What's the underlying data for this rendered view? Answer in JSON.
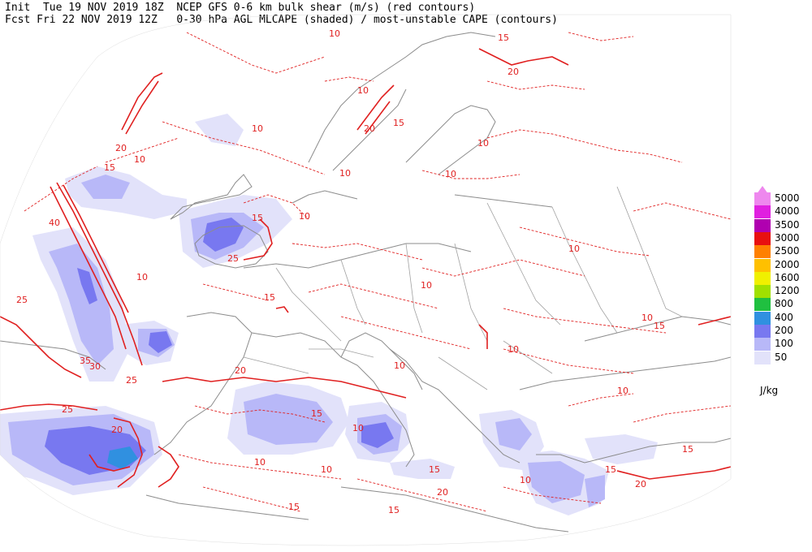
{
  "header": {
    "line1": "Init  Tue 19 NOV 2019 18Z  NCEP GFS 0-6 km bulk shear (m/s) (red contours)",
    "line2": "Fcst Fri 22 NOV 2019 12Z   0-30 hPa AGL MLCAPE (shaded) / most-unstable CAPE (contours)"
  },
  "legend": {
    "units": "J/kg",
    "levels": [
      {
        "label": "5000",
        "color": "#ee88ee"
      },
      {
        "label": "4000",
        "color": "#e020e0"
      },
      {
        "label": "3500",
        "color": "#b000b0"
      },
      {
        "label": "3000",
        "color": "#e81010"
      },
      {
        "label": "2500",
        "color": "#ff8000"
      },
      {
        "label": "2000",
        "color": "#ffc000"
      },
      {
        "label": "1600",
        "color": "#f0f000"
      },
      {
        "label": "1200",
        "color": "#a0e000"
      },
      {
        "label": "800",
        "color": "#20c040"
      },
      {
        "label": "400",
        "color": "#3090e0"
      },
      {
        "label": "200",
        "color": "#7878f0"
      },
      {
        "label": "100",
        "color": "#b8b8f8"
      },
      {
        "label": "50",
        "color": "#e2e2fa"
      }
    ]
  },
  "map": {
    "shear_contour_labels": [
      {
        "text": "10"
      },
      {
        "text": "15"
      },
      {
        "text": "20"
      },
      {
        "text": "25"
      },
      {
        "text": "30"
      },
      {
        "text": "35"
      },
      {
        "text": "40"
      }
    ],
    "colors": {
      "shear": "#e02020",
      "coast": "#8c8c8c",
      "cape_low": "#e2e2fa",
      "cape_mid": "#b8b8f8",
      "cape_high": "#7878f0",
      "cape_top": "#3090e0"
    }
  }
}
